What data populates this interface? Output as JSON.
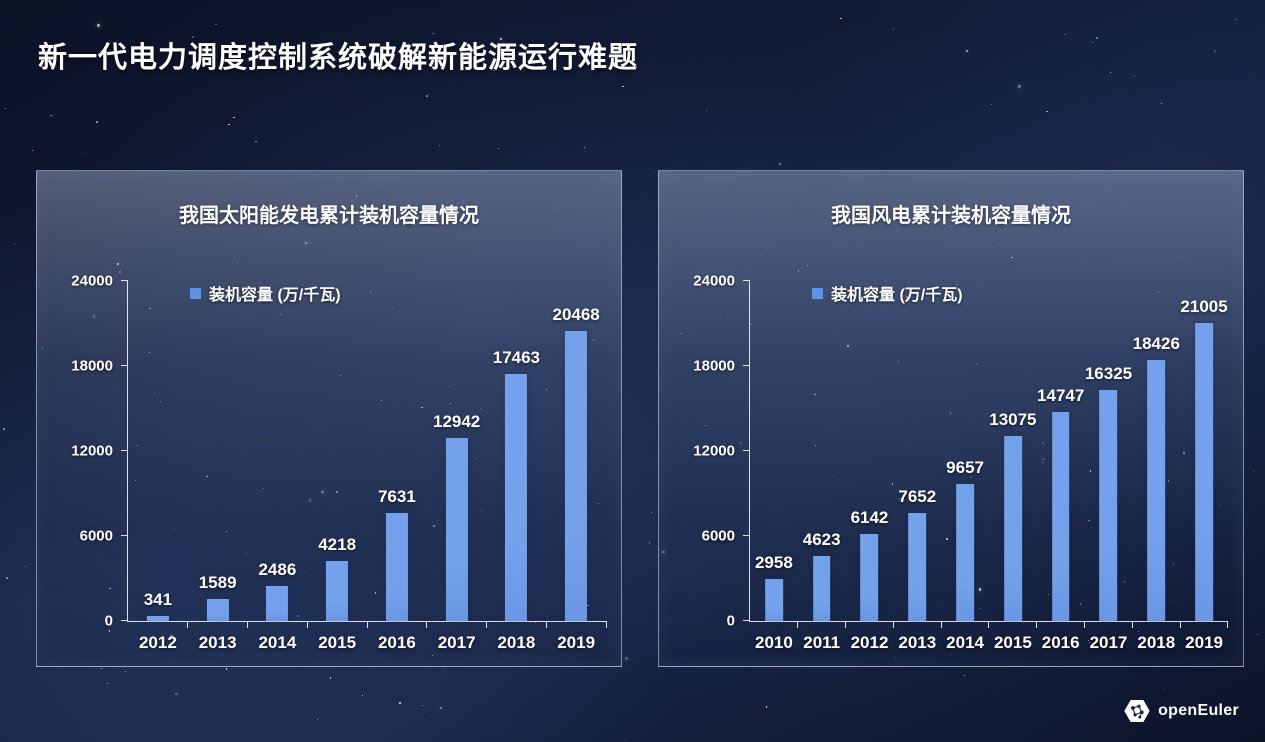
{
  "page_title": "新一代电力调度控制系统破解新能源运行难题",
  "logo": {
    "text": "openEuler"
  },
  "chart_data": [
    {
      "type": "bar",
      "title": "我国太阳能发电累计装机容量情况",
      "legend": "装机容量 (万/千瓦)",
      "categories": [
        "2012",
        "2013",
        "2014",
        "2015",
        "2016",
        "2017",
        "2018",
        "2019"
      ],
      "values": [
        341,
        1589,
        2486,
        4218,
        7631,
        12942,
        17463,
        20468
      ],
      "xlabel": "",
      "ylabel": "",
      "ylim": [
        0,
        24000
      ],
      "yticks": [
        0,
        6000,
        12000,
        18000,
        24000
      ],
      "grid": false,
      "legend_position": "top-left",
      "bar_color": "#74a1eb",
      "legend_swatch_color": "#5f93ea"
    },
    {
      "type": "bar",
      "title": "我国风电累计装机容量情况",
      "legend": "装机容量 (万/千瓦)",
      "categories": [
        "2010",
        "2011",
        "2012",
        "2013",
        "2014",
        "2015",
        "2016",
        "2017",
        "2018",
        "2019"
      ],
      "values": [
        2958,
        4623,
        6142,
        7652,
        9657,
        13075,
        14747,
        16325,
        18426,
        21005
      ],
      "xlabel": "",
      "ylabel": "",
      "ylim": [
        0,
        24000
      ],
      "yticks": [
        0,
        6000,
        12000,
        18000,
        24000
      ],
      "grid": false,
      "legend_position": "top-left",
      "bar_color": "#74a1eb",
      "legend_swatch_color": "#5f93ea"
    }
  ]
}
